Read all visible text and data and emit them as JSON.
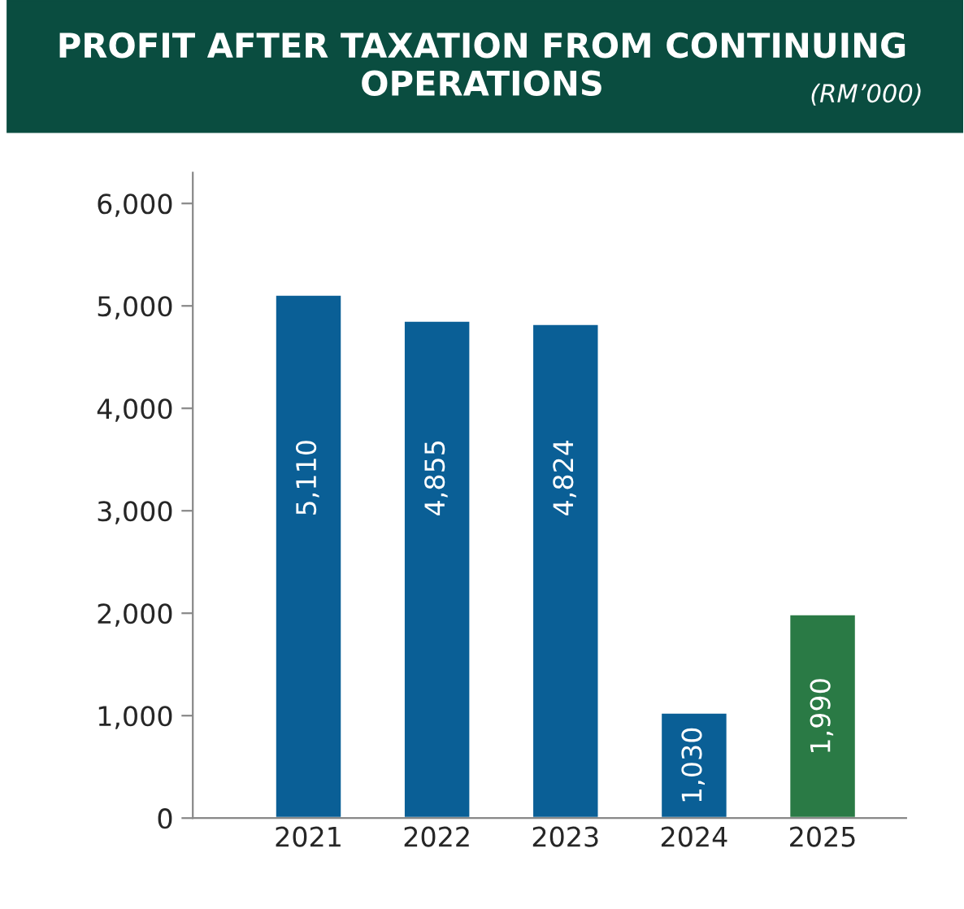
{
  "chart_data": {
    "type": "bar",
    "title": "PROFIT AFTER TAXATION FROM CONTINUING OPERATIONS",
    "subtitle": "(RM’000)",
    "categories": [
      "2021",
      "2022",
      "2023",
      "2024",
      "2025"
    ],
    "values": [
      5110,
      4855,
      4824,
      1030,
      1990
    ],
    "value_labels": [
      "5,110",
      "4,855",
      "4,824",
      "1,030",
      "1,990"
    ],
    "colors": [
      "#0a5f96",
      "#0a5f96",
      "#0a5f96",
      "#0a5f96",
      "#2a7a45"
    ],
    "ylim": [
      0,
      6300
    ],
    "yticks": [
      0,
      {
        "value": 1000,
        "label": "1,000"
      },
      {
        "value": 2000,
        "label": "2,000"
      },
      {
        "value": 3000,
        "label": "3,000"
      },
      {
        "value": 4000,
        "label": "4,000"
      },
      {
        "value": 5000,
        "label": "5,000"
      },
      {
        "value": 6000,
        "label": "6,000"
      }
    ],
    "grid": false,
    "legend": false
  }
}
